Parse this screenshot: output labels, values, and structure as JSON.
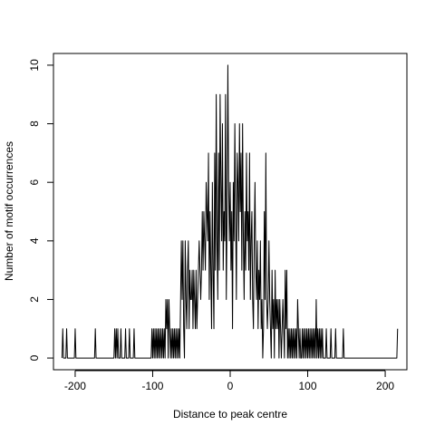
{
  "chart_data": {
    "type": "line",
    "title": "",
    "xlabel": "Distance to peak centre",
    "ylabel": "Number of motif occurrences",
    "xlim": [
      -228,
      228
    ],
    "ylim": [
      -0.4,
      10.4
    ],
    "x_ticks": [
      -200,
      -100,
      0,
      100,
      200
    ],
    "y_ticks": [
      0,
      2,
      4,
      6,
      8,
      10
    ],
    "x_tick_labels": [
      "-200",
      "-100",
      "0",
      "100",
      "200"
    ],
    "y_tick_labels": [
      "0",
      "2",
      "4",
      "6",
      "8",
      "10"
    ],
    "grid": false,
    "legend": "none",
    "line_color": "#000000",
    "series": [
      {
        "points": [
          [
            -217,
            0
          ],
          [
            -216,
            1
          ],
          [
            -215,
            0
          ],
          [
            -212,
            0
          ],
          [
            -211,
            1
          ],
          [
            -210,
            0
          ],
          [
            -201,
            0
          ],
          [
            -200,
            1
          ],
          [
            -199,
            0
          ],
          [
            -175,
            0
          ],
          [
            -174,
            1
          ],
          [
            -173,
            0
          ],
          [
            -150,
            0
          ],
          [
            -149,
            1
          ],
          [
            -148,
            0
          ],
          [
            -147,
            1
          ],
          [
            -146,
            0
          ],
          [
            -145,
            1
          ],
          [
            -144,
            0
          ],
          [
            -142,
            0
          ],
          [
            -141,
            1
          ],
          [
            -140,
            0
          ],
          [
            -136,
            0
          ],
          [
            -135,
            1
          ],
          [
            -134,
            0
          ],
          [
            -131,
            0
          ],
          [
            -130,
            1
          ],
          [
            -129,
            0
          ],
          [
            -125,
            0
          ],
          [
            -124,
            1
          ],
          [
            -123,
            0
          ],
          [
            -102,
            0
          ],
          [
            -101,
            1
          ],
          [
            -100,
            0
          ],
          [
            -99,
            1
          ],
          [
            -98,
            0
          ],
          [
            -97,
            1
          ],
          [
            -96,
            0
          ],
          [
            -95,
            1
          ],
          [
            -94,
            0
          ],
          [
            -93,
            1
          ],
          [
            -92,
            0
          ],
          [
            -91,
            1
          ],
          [
            -90,
            0
          ],
          [
            -89,
            1
          ],
          [
            -88,
            0
          ],
          [
            -87,
            1
          ],
          [
            -86,
            0
          ],
          [
            -85,
            1
          ],
          [
            -84,
            0
          ],
          [
            -83,
            2
          ],
          [
            -82,
            1
          ],
          [
            -81,
            2
          ],
          [
            -80,
            0
          ],
          [
            -79,
            2
          ],
          [
            -78,
            1
          ],
          [
            -77,
            0
          ],
          [
            -76,
            1
          ],
          [
            -75,
            0
          ],
          [
            -74,
            1
          ],
          [
            -73,
            0
          ],
          [
            -72,
            1
          ],
          [
            -71,
            0
          ],
          [
            -70,
            1
          ],
          [
            -69,
            0
          ],
          [
            -68,
            1
          ],
          [
            -67,
            0
          ],
          [
            -66,
            1
          ],
          [
            -65,
            0
          ],
          [
            -64,
            2
          ],
          [
            -63,
            4
          ],
          [
            -62,
            2
          ],
          [
            -61,
            4
          ],
          [
            -60,
            1
          ],
          [
            -59,
            0
          ],
          [
            -58,
            4
          ],
          [
            -57,
            2
          ],
          [
            -56,
            1
          ],
          [
            -55,
            3
          ],
          [
            -54,
            4
          ],
          [
            -53,
            1
          ],
          [
            -52,
            3
          ],
          [
            -51,
            2
          ],
          [
            -50,
            2
          ],
          [
            -49,
            3
          ],
          [
            -48,
            1
          ],
          [
            -47,
            3
          ],
          [
            -46,
            2
          ],
          [
            -45,
            1
          ],
          [
            -44,
            3
          ],
          [
            -43,
            1
          ],
          [
            -42,
            2
          ],
          [
            -41,
            3
          ],
          [
            -40,
            4
          ],
          [
            -39,
            3
          ],
          [
            -38,
            2
          ],
          [
            -37,
            3
          ],
          [
            -36,
            5
          ],
          [
            -35,
            3
          ],
          [
            -34,
            5
          ],
          [
            -33,
            4
          ],
          [
            -32,
            3
          ],
          [
            -31,
            6
          ],
          [
            -30,
            5
          ],
          [
            -29,
            4
          ],
          [
            -28,
            7
          ],
          [
            -27,
            2
          ],
          [
            -26,
            5
          ],
          [
            -25,
            3
          ],
          [
            -24,
            1
          ],
          [
            -23,
            6
          ],
          [
            -22,
            3
          ],
          [
            -21,
            1
          ],
          [
            -20,
            7
          ],
          [
            -19,
            3
          ],
          [
            -18,
            9
          ],
          [
            -17,
            4
          ],
          [
            -16,
            2
          ],
          [
            -15,
            7
          ],
          [
            -14,
            3
          ],
          [
            -13,
            9
          ],
          [
            -12,
            6
          ],
          [
            -11,
            4
          ],
          [
            -10,
            8
          ],
          [
            -9,
            3
          ],
          [
            -8,
            5
          ],
          [
            -7,
            4
          ],
          [
            -6,
            9
          ],
          [
            -5,
            2
          ],
          [
            -4,
            5
          ],
          [
            -3,
            10
          ],
          [
            -2,
            6
          ],
          [
            -1,
            4
          ],
          [
            0,
            6
          ],
          [
            1,
            3
          ],
          [
            2,
            5
          ],
          [
            3,
            1
          ],
          [
            4,
            6
          ],
          [
            5,
            4
          ],
          [
            6,
            8
          ],
          [
            7,
            5
          ],
          [
            8,
            2
          ],
          [
            9,
            7
          ],
          [
            10,
            6
          ],
          [
            11,
            4
          ],
          [
            12,
            8
          ],
          [
            13,
            5
          ],
          [
            14,
            7
          ],
          [
            15,
            3
          ],
          [
            16,
            8
          ],
          [
            17,
            4
          ],
          [
            18,
            2
          ],
          [
            19,
            5
          ],
          [
            20,
            3
          ],
          [
            21,
            7
          ],
          [
            22,
            4
          ],
          [
            23,
            5
          ],
          [
            24,
            3
          ],
          [
            25,
            7
          ],
          [
            26,
            2
          ],
          [
            27,
            4
          ],
          [
            28,
            5
          ],
          [
            29,
            2
          ],
          [
            30,
            1
          ],
          [
            31,
            4
          ],
          [
            32,
            6
          ],
          [
            33,
            3
          ],
          [
            34,
            2
          ],
          [
            35,
            4
          ],
          [
            36,
            1
          ],
          [
            37,
            3
          ],
          [
            38,
            2
          ],
          [
            39,
            4
          ],
          [
            40,
            1
          ],
          [
            41,
            2
          ],
          [
            42,
            0
          ],
          [
            43,
            1
          ],
          [
            44,
            5
          ],
          [
            45,
            2
          ],
          [
            46,
            7
          ],
          [
            47,
            2
          ],
          [
            48,
            1
          ],
          [
            49,
            2
          ],
          [
            50,
            4
          ],
          [
            51,
            2
          ],
          [
            52,
            1
          ],
          [
            53,
            0
          ],
          [
            54,
            3
          ],
          [
            55,
            1
          ],
          [
            56,
            2
          ],
          [
            57,
            0
          ],
          [
            58,
            3
          ],
          [
            59,
            1
          ],
          [
            60,
            2
          ],
          [
            61,
            1
          ],
          [
            62,
            2
          ],
          [
            63,
            0
          ],
          [
            64,
            2
          ],
          [
            65,
            1
          ],
          [
            66,
            0
          ],
          [
            67,
            1
          ],
          [
            68,
            2
          ],
          [
            69,
            1
          ],
          [
            70,
            0
          ],
          [
            71,
            3
          ],
          [
            72,
            1
          ],
          [
            73,
            3
          ],
          [
            74,
            0
          ],
          [
            75,
            1
          ],
          [
            76,
            0
          ],
          [
            77,
            1
          ],
          [
            78,
            0
          ],
          [
            79,
            1
          ],
          [
            80,
            0
          ],
          [
            81,
            1
          ],
          [
            82,
            0
          ],
          [
            83,
            1
          ],
          [
            84,
            0
          ],
          [
            85,
            1
          ],
          [
            86,
            0
          ],
          [
            87,
            2
          ],
          [
            88,
            1
          ],
          [
            89,
            0
          ],
          [
            90,
            1
          ],
          [
            91,
            0
          ],
          [
            92,
            0
          ],
          [
            93,
            1
          ],
          [
            94,
            0
          ],
          [
            95,
            1
          ],
          [
            96,
            0
          ],
          [
            97,
            1
          ],
          [
            98,
            0
          ],
          [
            99,
            1
          ],
          [
            100,
            0
          ],
          [
            101,
            1
          ],
          [
            102,
            0
          ],
          [
            103,
            1
          ],
          [
            104,
            0
          ],
          [
            105,
            1
          ],
          [
            106,
            0
          ],
          [
            107,
            1
          ],
          [
            108,
            0
          ],
          [
            109,
            1
          ],
          [
            110,
            0
          ],
          [
            111,
            2
          ],
          [
            112,
            0
          ],
          [
            113,
            1
          ],
          [
            114,
            0
          ],
          [
            115,
            1
          ],
          [
            116,
            0
          ],
          [
            117,
            1
          ],
          [
            118,
            0
          ],
          [
            119,
            1
          ],
          [
            120,
            0
          ],
          [
            123,
            0
          ],
          [
            124,
            1
          ],
          [
            125,
            0
          ],
          [
            129,
            0
          ],
          [
            130,
            1
          ],
          [
            131,
            0
          ],
          [
            135,
            0
          ],
          [
            136,
            1
          ],
          [
            137,
            0
          ],
          [
            145,
            0
          ],
          [
            146,
            1
          ],
          [
            147,
            0
          ],
          [
            215,
            0
          ],
          [
            216,
            1
          ]
        ]
      }
    ]
  }
}
